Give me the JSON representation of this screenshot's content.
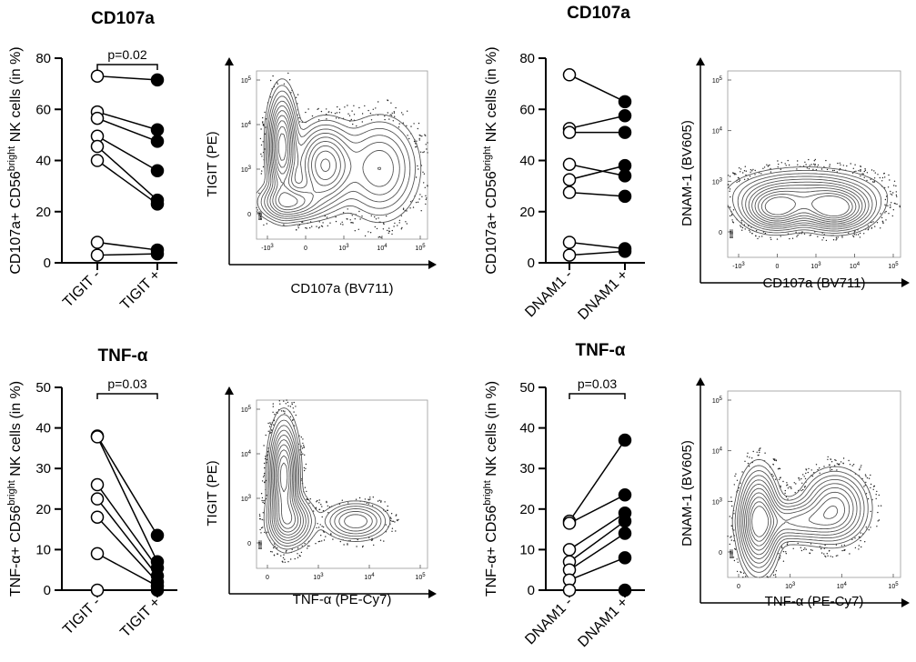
{
  "figure": {
    "background": "#ffffff",
    "ink": "#000000",
    "contour_color": "#555555"
  },
  "chart_data": [
    {
      "id": "tigit_cd107a",
      "type": "scatter",
      "subtype": "paired-dot",
      "title": "CD107a",
      "ylabel": "CD107a+ CD56 bright NK cells (in %)",
      "ylabel_parts": [
        "CD107a+ CD56",
        "bright",
        " NK cells (in %)"
      ],
      "categories": [
        "TIGIT -",
        "TIGIT +"
      ],
      "ylim": [
        0,
        80
      ],
      "yticks": [
        "0",
        "20",
        "40",
        "60",
        "80"
      ],
      "pvalue": "p=0.02",
      "pairs": [
        [
          73,
          71.5
        ],
        [
          59,
          52
        ],
        [
          56.5,
          47.5
        ],
        [
          49.5,
          36
        ],
        [
          45.5,
          24.5
        ],
        [
          40,
          23
        ],
        [
          8,
          5
        ],
        [
          3,
          3.5
        ]
      ]
    },
    {
      "id": "dnam1_cd107a",
      "type": "scatter",
      "subtype": "paired-dot",
      "title": "CD107a",
      "ylabel": "CD107a+ CD56 bright NK cells (in %)",
      "ylabel_parts": [
        "CD107a+ CD56",
        "bright",
        " NK cells (in %)"
      ],
      "categories": [
        "DNAM1 -",
        "DNAM1 +"
      ],
      "ylim": [
        0,
        80
      ],
      "yticks": [
        "0",
        "20",
        "40",
        "60",
        "80"
      ],
      "pvalue": "",
      "pairs": [
        [
          73.5,
          63
        ],
        [
          52.5,
          57.5
        ],
        [
          51,
          51
        ],
        [
          38.5,
          34
        ],
        [
          32.5,
          38
        ],
        [
          27.5,
          26
        ],
        [
          8,
          5.5
        ],
        [
          3,
          4.5
        ]
      ]
    },
    {
      "id": "tigit_tnfa",
      "type": "scatter",
      "subtype": "paired-dot",
      "title": "TNF-α",
      "ylabel": "TNF-α+ CD56 bright NK cells (in %)",
      "ylabel_parts": [
        "TNF-α+ CD56",
        "bright",
        " NK cells (in %)"
      ],
      "categories": [
        "TIGIT -",
        "TIGIT +"
      ],
      "ylim": [
        0,
        50
      ],
      "yticks": [
        "0",
        "10",
        "20",
        "30",
        "40",
        "50"
      ],
      "pvalue": "p=0.03",
      "pairs": [
        [
          38,
          13.5
        ],
        [
          37.8,
          7
        ],
        [
          26,
          5.5
        ],
        [
          22.5,
          3.5
        ],
        [
          18,
          2
        ],
        [
          9,
          1
        ],
        [
          0,
          0
        ]
      ]
    },
    {
      "id": "dnam1_tnfa",
      "type": "scatter",
      "subtype": "paired-dot",
      "title": "TNF-α",
      "ylabel": "TNF-α+ CD56 bright NK cells (in %)",
      "ylabel_parts": [
        "TNF-α+ CD56",
        "bright",
        " NK cells (in %)"
      ],
      "categories": [
        "DNAM1 -",
        "DNAM1 +"
      ],
      "ylim": [
        0,
        50
      ],
      "yticks": [
        "0",
        "10",
        "20",
        "30",
        "40",
        "50"
      ],
      "pvalue": "p=0.03",
      "pairs": [
        [
          17,
          37
        ],
        [
          16.5,
          23.5
        ],
        [
          10,
          19
        ],
        [
          7,
          17
        ],
        [
          5,
          14
        ],
        [
          2.5,
          8
        ],
        [
          0,
          0
        ]
      ]
    },
    {
      "id": "flow_tigit_cd107a",
      "type": "scatter",
      "subtype": "flow-contour",
      "xlabel": "CD107a (BV711)",
      "ylabel": "TIGIT (PE)",
      "xticks": [
        "-10",
        "3",
        "0",
        "10",
        "3",
        "10",
        "4",
        "10",
        "5"
      ],
      "xtick_labels": [
        {
          "b": "-10",
          "e": "3"
        },
        {
          "b": "0",
          "e": ""
        },
        {
          "b": "10",
          "e": "3"
        },
        {
          "b": "10",
          "e": "4"
        },
        {
          "b": "10",
          "e": "5"
        }
      ],
      "ytick_labels": [
        {
          "b": "10",
          "e": "5"
        },
        {
          "b": "10",
          "e": "4"
        },
        {
          "b": "10",
          "e": "3"
        },
        {
          "b": "0",
          "e": ""
        }
      ],
      "populations": [
        {
          "x": 0.15,
          "y": 0.55,
          "sx": 0.045,
          "sy": 0.17,
          "peak": 1.0
        },
        {
          "x": 0.4,
          "y": 0.44,
          "sx": 0.09,
          "sy": 0.13,
          "peak": 0.8
        },
        {
          "x": 0.2,
          "y": 0.22,
          "sx": 0.1,
          "sy": 0.06,
          "peak": 0.65
        },
        {
          "x": 0.72,
          "y": 0.42,
          "sx": 0.12,
          "sy": 0.16,
          "peak": 0.45
        }
      ]
    },
    {
      "id": "flow_dnam1_cd107a",
      "type": "scatter",
      "subtype": "flow-contour",
      "xlabel": "CD107a (BV711)",
      "ylabel": "DNAM-1 (BV605)",
      "xtick_labels": [
        {
          "b": "-10",
          "e": "3"
        },
        {
          "b": "0",
          "e": ""
        },
        {
          "b": "10",
          "e": "3"
        },
        {
          "b": "10",
          "e": "4"
        },
        {
          "b": "10",
          "e": "5"
        }
      ],
      "ytick_labels": [
        {
          "b": "10",
          "e": "5"
        },
        {
          "b": "10",
          "e": "4"
        },
        {
          "b": "10",
          "e": "3"
        },
        {
          "b": "0",
          "e": ""
        }
      ],
      "populations": [
        {
          "x": 0.28,
          "y": 0.26,
          "sx": 0.1,
          "sy": 0.06,
          "peak": 0.9
        },
        {
          "x": 0.62,
          "y": 0.26,
          "sx": 0.11,
          "sy": 0.06,
          "peak": 1.0
        },
        {
          "x": 0.45,
          "y": 0.34,
          "sx": 0.22,
          "sy": 0.07,
          "peak": 0.5
        }
      ]
    },
    {
      "id": "flow_tigit_tnfa",
      "type": "scatter",
      "subtype": "flow-contour",
      "xlabel": "TNF-α (PE-Cy7)",
      "ylabel": "TIGIT (PE)",
      "xtick_labels": [
        {
          "b": "0",
          "e": ""
        },
        {
          "b": "10",
          "e": "3"
        },
        {
          "b": "10",
          "e": "4"
        },
        {
          "b": "10",
          "e": "5"
        }
      ],
      "ytick_labels": [
        {
          "b": "10",
          "e": "5"
        },
        {
          "b": "10",
          "e": "4"
        },
        {
          "b": "10",
          "e": "3"
        },
        {
          "b": "0",
          "e": ""
        }
      ],
      "populations": [
        {
          "x": 0.16,
          "y": 0.55,
          "sx": 0.045,
          "sy": 0.17,
          "peak": 1.0
        },
        {
          "x": 0.2,
          "y": 0.28,
          "sx": 0.07,
          "sy": 0.08,
          "peak": 0.6
        },
        {
          "x": 0.58,
          "y": 0.28,
          "sx": 0.1,
          "sy": 0.06,
          "peak": 0.45
        }
      ]
    },
    {
      "id": "flow_dnam1_tnfa",
      "type": "scatter",
      "subtype": "flow-contour",
      "xlabel": "TNF-α (PE-Cy7)",
      "ylabel": "DNAM-1 (BV605)",
      "xtick_labels": [
        {
          "b": "0",
          "e": ""
        },
        {
          "b": "10",
          "e": "3"
        },
        {
          "b": "10",
          "e": "4"
        },
        {
          "b": "10",
          "e": "5"
        }
      ],
      "ytick_labels": [
        {
          "b": "10",
          "e": "5"
        },
        {
          "b": "10",
          "e": "4"
        },
        {
          "b": "10",
          "e": "3"
        },
        {
          "b": "0",
          "e": ""
        }
      ],
      "populations": [
        {
          "x": 0.18,
          "y": 0.3,
          "sx": 0.06,
          "sy": 0.14,
          "peak": 1.0
        },
        {
          "x": 0.62,
          "y": 0.38,
          "sx": 0.1,
          "sy": 0.1,
          "peak": 0.6
        },
        {
          "x": 0.4,
          "y": 0.3,
          "sx": 0.15,
          "sy": 0.06,
          "peak": 0.45
        }
      ]
    }
  ]
}
